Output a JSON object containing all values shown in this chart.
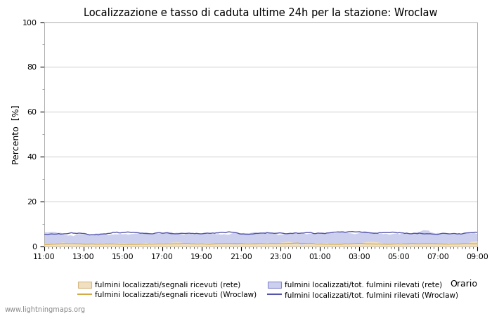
{
  "title": "Localizzazione e tasso di caduta ultime 24h per la stazione: Wroclaw",
  "xlabel_right": "Orario",
  "ylabel": "Percento  [%]",
  "ylim": [
    0,
    100
  ],
  "yticks_major": [
    0,
    20,
    40,
    60,
    80,
    100
  ],
  "yticks_minor": [
    10,
    30,
    50,
    70,
    90
  ],
  "xtick_labels": [
    "11:00",
    "13:00",
    "15:00",
    "17:00",
    "19:00",
    "21:00",
    "23:00",
    "01:00",
    "03:00",
    "05:00",
    "07:00",
    "09:00"
  ],
  "n_points": 240,
  "area_rete_color": "#f0dfc0",
  "area_rete_edge": "#d4b882",
  "area_wroclaw_color": "#ccd0ee",
  "area_wroclaw_edge": "#8888cc",
  "line_rete_color": "#d4aa44",
  "line_wroclaw_color": "#5555aa",
  "background_color": "#ffffff",
  "grid_color": "#cccccc",
  "watermark": "www.lightningmaps.org",
  "legend_labels": [
    "fulmini localizzati/segnali ricevuti (rete)",
    "fulmini localizzati/segnali ricevuti (Wroclaw)",
    "fulmini localizzati/tot. fulmini rilevati (rete)",
    "fulmini localizzati/tot. fulmini rilevati (Wroclaw)"
  ]
}
